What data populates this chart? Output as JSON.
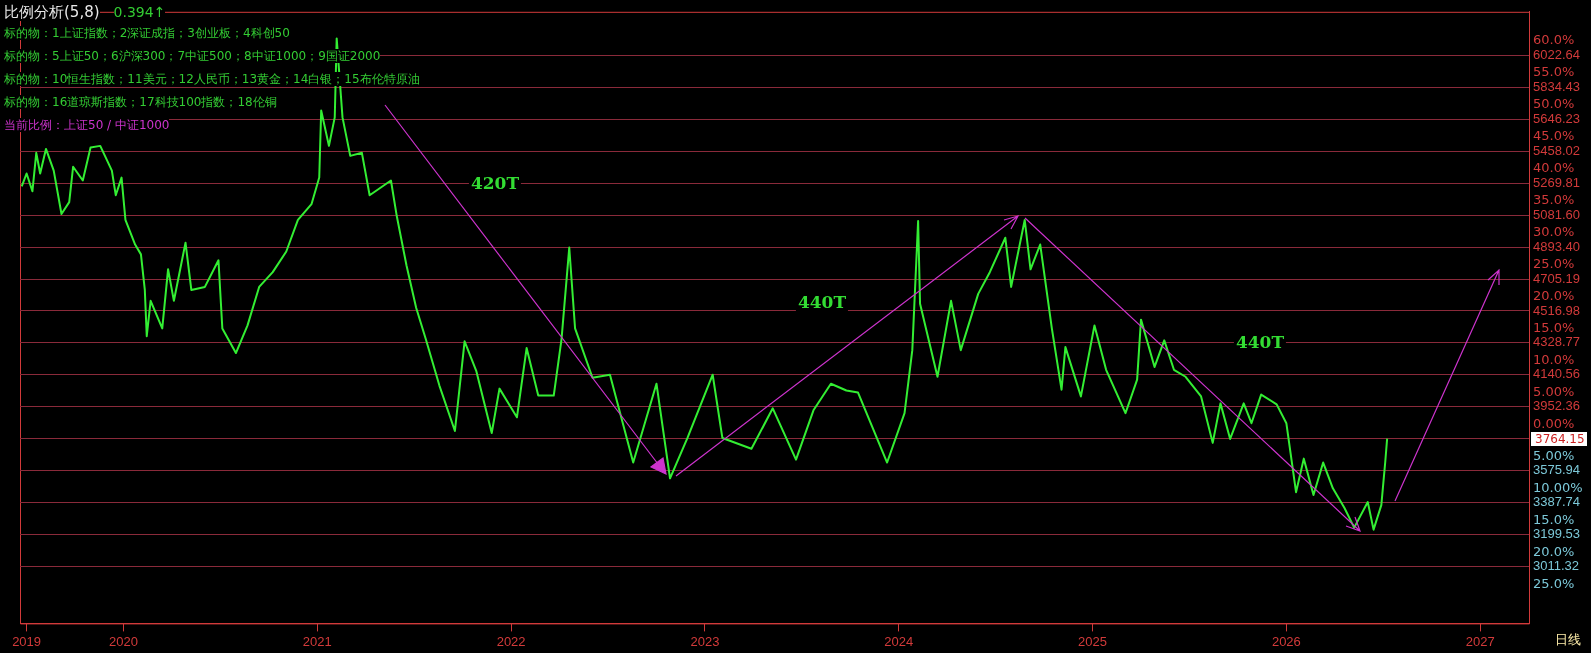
{
  "chart_data": {
    "type": "line",
    "title": "比例分析(5,8)",
    "subtitle": "0.394↑",
    "series": [
      {
        "color": "#33ee33",
        "x": [
          2019.475,
          2019.5,
          2019.53,
          2019.55,
          2019.57,
          2019.6,
          2019.64,
          2019.68,
          2019.72,
          2019.74,
          2019.79,
          2019.83,
          2019.88,
          2019.94,
          2019.96,
          2019.99,
          2020.01,
          2020.06,
          2020.09,
          2020.11,
          2020.12,
          2020.14,
          2020.2,
          2020.23,
          2020.26,
          2020.32,
          2020.35,
          2020.42,
          2020.49,
          2020.51,
          2020.58,
          2020.64,
          2020.7,
          2020.77,
          2020.84,
          2020.9,
          2020.97,
          2021.01,
          2021.02,
          2021.06,
          2021.09,
          2021.1,
          2021.13,
          2021.17,
          2021.23,
          2021.27,
          2021.38,
          2021.41,
          2021.46,
          2021.51,
          2021.56,
          2021.63,
          2021.71,
          2021.76,
          2021.82,
          2021.9,
          2021.94,
          2022.03,
          2022.08,
          2022.14,
          2022.22,
          2022.26,
          2022.3,
          2022.33,
          2022.42,
          2022.51,
          2022.63,
          2022.75,
          2022.82,
          2022.91,
          2023.04,
          2023.09,
          2023.24,
          2023.35,
          2023.47,
          2023.56,
          2023.65,
          2023.73,
          2023.79,
          2023.94,
          2024.03,
          2024.07,
          2024.1,
          2024.11,
          2024.2,
          2024.27,
          2024.32,
          2024.41,
          2024.47,
          2024.55,
          2024.58,
          2024.65,
          2024.68,
          2024.73,
          2024.79,
          2024.84,
          2024.86,
          2024.94,
          2025.01,
          2025.07,
          2025.17,
          2025.23,
          2025.25,
          2025.32,
          2025.37,
          2025.42,
          2025.48,
          2025.56,
          2025.62,
          2025.66,
          2025.71,
          2025.78,
          2025.82,
          2025.87,
          2025.95,
          2026.0,
          2026.05,
          2026.09,
          2026.14,
          2026.19,
          2026.24,
          2026.3,
          2026.35,
          2026.42,
          2026.45,
          2026.49,
          2026.51,
          2026.52
        ],
        "values": [
          5252,
          5328,
          5223,
          5450,
          5328,
          5473,
          5345,
          5089,
          5159,
          5368,
          5287,
          5482,
          5491,
          5345,
          5200,
          5304,
          5054,
          4909,
          4851,
          4641,
          4368,
          4577,
          4414,
          4763,
          4577,
          4920,
          4641,
          4659,
          4816,
          4414,
          4269,
          4432,
          4659,
          4746,
          4868,
          5054,
          5147,
          5304,
          5700,
          5491,
          5659,
          6125,
          5659,
          5432,
          5450,
          5200,
          5287,
          5077,
          4787,
          4536,
          4350,
          4077,
          3809,
          4338,
          4164,
          3797,
          4059,
          3890,
          4298,
          4018,
          4018,
          4350,
          4891,
          4414,
          4123,
          4141,
          3623,
          4088,
          3530,
          3768,
          4141,
          3768,
          3704,
          3943,
          3640,
          3931,
          4088,
          4048,
          4036,
          3623,
          3914,
          4286,
          5048,
          4560,
          4129,
          4577,
          4286,
          4618,
          4746,
          4949,
          4659,
          5054,
          4763,
          4909,
          4414,
          4053,
          4304,
          4013,
          4432,
          4170,
          3914,
          4112,
          4466,
          4187,
          4344,
          4170,
          4129,
          4013,
          3739,
          3972,
          3762,
          3972,
          3855,
          4024,
          3966,
          3855,
          3448,
          3646,
          3431,
          3623,
          3471,
          3355,
          3239,
          3390,
          3227,
          3372,
          3623,
          3764
        ]
      }
    ],
    "xlim": [
      2019.466,
      2027.252
    ],
    "xticks": [
      {
        "value": 2019.5,
        "label": "2019"
      },
      2020,
      2021,
      2022,
      2023,
      2024,
      2025,
      2026,
      2027
    ],
    "ylim": [
      2674,
      6282
    ],
    "yticks": [
      3011.32,
      3199.53,
      3387.74,
      3575.94,
      3764.15,
      3952.36,
      4140.56,
      4328.77,
      4516.98,
      4705.19,
      {
        "value": 4893.4,
        "label": "4893.40"
      },
      {
        "value": 5081.6,
        "label": "5081.60"
      },
      5269.81,
      5458.02,
      5646.23,
      5834.43,
      6022.64
    ],
    "y2lim": [
      -31.1,
      64.5
    ],
    "y2ticks": [
      {
        "value": -25,
        "label": "25.0%"
      },
      {
        "value": -20,
        "label": "20.0%"
      },
      {
        "value": -15,
        "label": "15.0%"
      },
      {
        "value": -10,
        "label": "10.00%"
      },
      {
        "value": -5,
        "label": "5.00%"
      },
      {
        "value": 0,
        "label": "0.00%"
      },
      {
        "value": 5,
        "label": "5.00%"
      },
      {
        "value": 10,
        "label": "10.0%"
      },
      {
        "value": 15,
        "label": "15.0%"
      },
      {
        "value": 20,
        "label": "20.0%"
      },
      {
        "value": 25,
        "label": "25.0%"
      },
      {
        "value": 30,
        "label": "30.0%"
      },
      {
        "value": 35,
        "label": "35.0%"
      },
      {
        "value": 40,
        "label": "40.0%"
      },
      {
        "value": 45,
        "label": "45.0%"
      },
      {
        "value": 50,
        "label": "50.0%"
      },
      {
        "value": 55,
        "label": "55.0%"
      },
      {
        "value": 60,
        "label": "60.0%"
      }
    ],
    "grid": "y",
    "marker": "none",
    "line_style": "solid",
    "annotations": [
      "标的物：1上证指数；2深证成指；3创业板；4科创50",
      "标的物：5上证50；6沪深300；7中证500；8中证1000；9国证2000",
      "标的物：10恒生指数；11美元；12人民币；13黄金；14白银；15布伦特原油",
      "标的物：16道琼斯指数；17科技100指数；18伦铜",
      "当前比例：上证50 / 中证1000",
      "420T",
      "440T",
      "440T",
      "3764.15",
      "日线"
    ]
  }
}
